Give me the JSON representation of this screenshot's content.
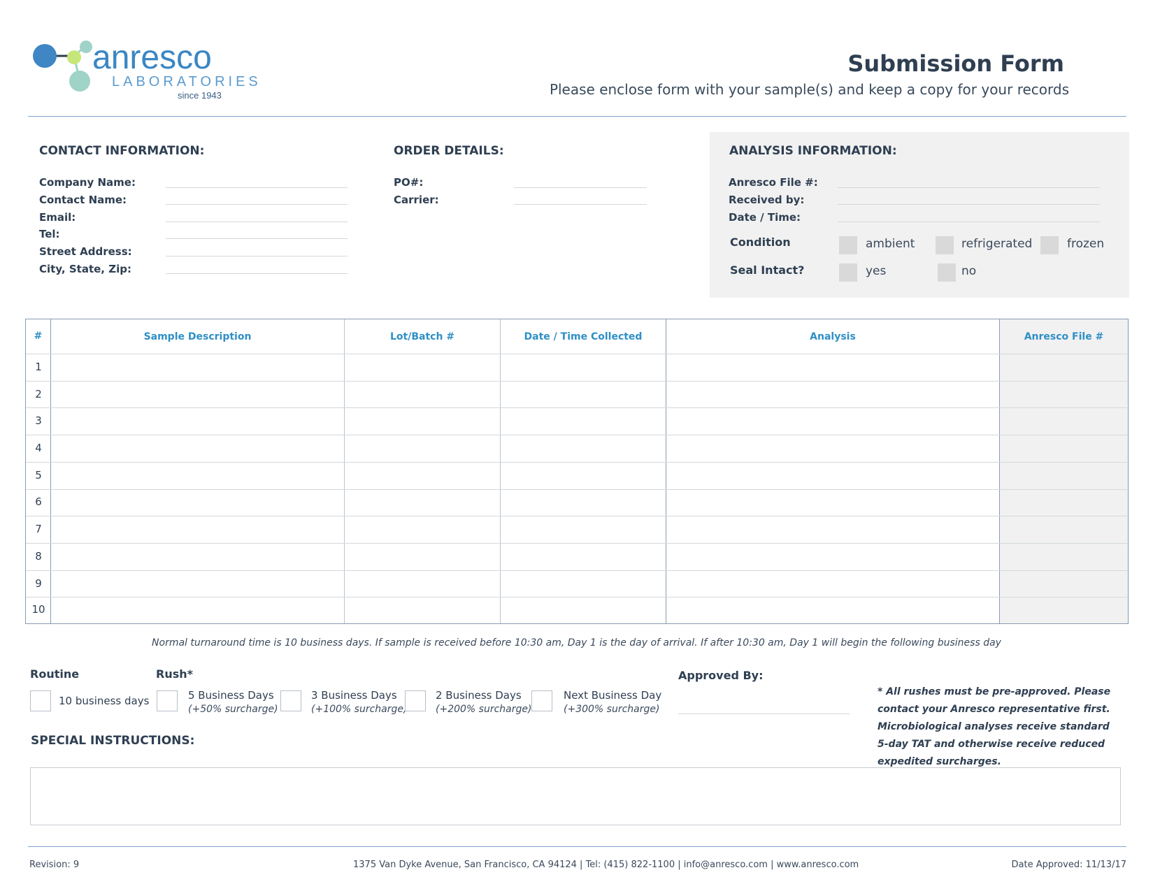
{
  "logo": {
    "name": "anresco",
    "sub": "LABORATORIES",
    "since": "since 1943"
  },
  "header": {
    "title": "Submission Form",
    "subtitle": "Please enclose form with your sample(s) and keep a copy for your records"
  },
  "contact": {
    "heading": "CONTACT INFORMATION:",
    "fields": [
      "Company Name:",
      "Contact Name:",
      "Email:",
      "Tel:",
      "Street Address:",
      "City, State, Zip:"
    ]
  },
  "order": {
    "heading": "ORDER DETAILS:",
    "fields": [
      "PO#:",
      "Carrier:"
    ]
  },
  "analysis_info": {
    "heading": "ANALYSIS INFORMATION:",
    "fields": [
      "Anresco File #:",
      "Received by:",
      "Date / Time:"
    ],
    "condition_label": "Condition",
    "condition_options": [
      "ambient",
      "refrigerated",
      "frozen"
    ],
    "seal_label": "Seal Intact?",
    "seal_options": [
      "yes",
      "no"
    ]
  },
  "table": {
    "headers": [
      "#",
      "Sample Description",
      "Lot/Batch #",
      "Date / Time Collected",
      "Analysis",
      "Anresco File #"
    ],
    "rows": [
      "1",
      "2",
      "3",
      "4",
      "5",
      "6",
      "7",
      "8",
      "9",
      "10"
    ]
  },
  "turnaround_note": "Normal turnaround time is 10 business days. If sample is received before 10:30 am, Day 1 is the day of arrival. If after 10:30 am, Day 1 will begin the following business day",
  "tat": {
    "routine_label": "Routine",
    "rush_label": "Rush*",
    "routine_option": "10 business  days",
    "rush_options": [
      {
        "label": "5 Business Days",
        "note": "(+50% surcharge)"
      },
      {
        "label": "3 Business Days",
        "note": "(+100% surcharge)"
      },
      {
        "label": "2 Business Days",
        "note": "(+200% surcharge)"
      },
      {
        "label": "Next Business Day",
        "note": "(+300% surcharge)"
      }
    ]
  },
  "approved_by": "Approved By:",
  "rush_note": "* All rushes must be pre-approved. Please contact your Anresco representative first. Microbiological analyses receive standard 5-day TAT and otherwise receive reduced expedited surcharges.",
  "special_instructions": "SPECIAL INSTRUCTIONS:",
  "footer": {
    "revision": "Revision: 9",
    "address": "1375 Van Dyke Avenue, San Francisco, CA 94124 | Tel: (415) 822-1100 | info@anresco.com | www.anresco.com",
    "date_approved": "Date Approved: 11/13/17"
  }
}
